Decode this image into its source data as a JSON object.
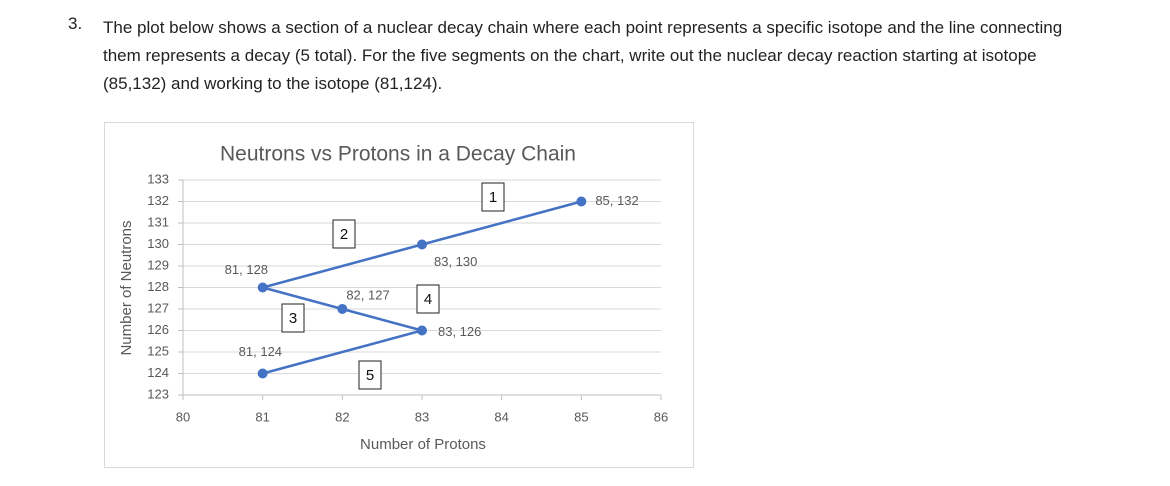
{
  "question": {
    "number": "3.",
    "text": "The plot below shows a section of a nuclear decay chain where each point represents a specific isotope and the line connecting them represents a decay (5 total).  For the five segments on the chart, write out the nuclear decay reaction starting at isotope (85,132) and working to the isotope (81,124)."
  },
  "chart_data": {
    "type": "line",
    "title": "Neutrons vs Protons in a Decay Chain",
    "x_label": "Number of Protons",
    "y_label": "Number of Neutrons",
    "x": [
      85,
      83,
      81,
      82,
      83,
      81
    ],
    "values": [
      132,
      130,
      128,
      127,
      126,
      124
    ],
    "value_labels": [
      "85, 132",
      "83, 130",
      "81, 128",
      "82, 127",
      "83, 126",
      "81, 124"
    ],
    "color": "#4472c4",
    "xlim": [
      80,
      86
    ],
    "xticks": [
      80,
      81,
      82,
      83,
      84,
      85,
      86
    ],
    "ylim": [
      123,
      133
    ],
    "yticks": [
      123,
      124,
      125,
      126,
      127,
      128,
      129,
      130,
      131,
      132,
      133
    ],
    "grid": true,
    "annotations": [
      "1",
      "2",
      "3",
      "4",
      "5"
    ]
  }
}
